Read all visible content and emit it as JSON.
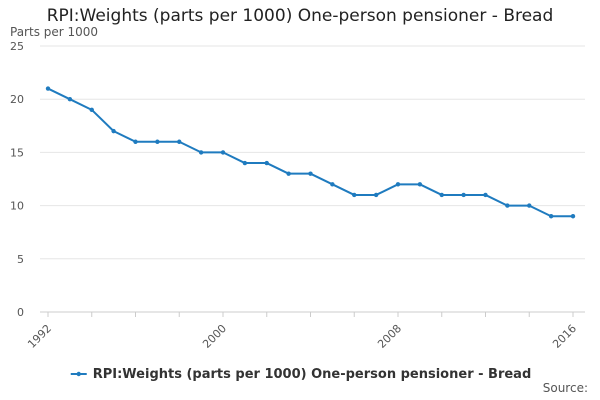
{
  "chart_data": {
    "type": "line",
    "title": "RPI:Weights (parts per 1000) One-person pensioner - Bread",
    "ylabel": "Parts per 1000",
    "xlabel": "",
    "x": [
      1992,
      1993,
      1994,
      1995,
      1996,
      1997,
      1998,
      1999,
      2000,
      2001,
      2002,
      2003,
      2004,
      2005,
      2006,
      2007,
      2008,
      2009,
      2010,
      2011,
      2012,
      2013,
      2014,
      2015,
      2016
    ],
    "series": [
      {
        "name": "RPI:Weights (parts per 1000) One-person pensioner - Bread",
        "values": [
          21,
          20,
          19,
          17,
          16,
          16,
          16,
          15,
          15,
          14,
          14,
          13,
          13,
          12,
          11,
          11,
          12,
          12,
          11,
          11,
          11,
          10,
          10,
          9,
          9
        ]
      }
    ],
    "ylim": [
      0,
      25
    ],
    "y_ticks": [
      "0",
      "5",
      "10",
      "15",
      "20",
      "25"
    ],
    "x_ticks": [
      "1992",
      "2000",
      "2008",
      "2016"
    ],
    "grid": "horizontal",
    "legend_position": "bottom",
    "line_color": "#1f7bbf"
  },
  "source_label": "Source:"
}
